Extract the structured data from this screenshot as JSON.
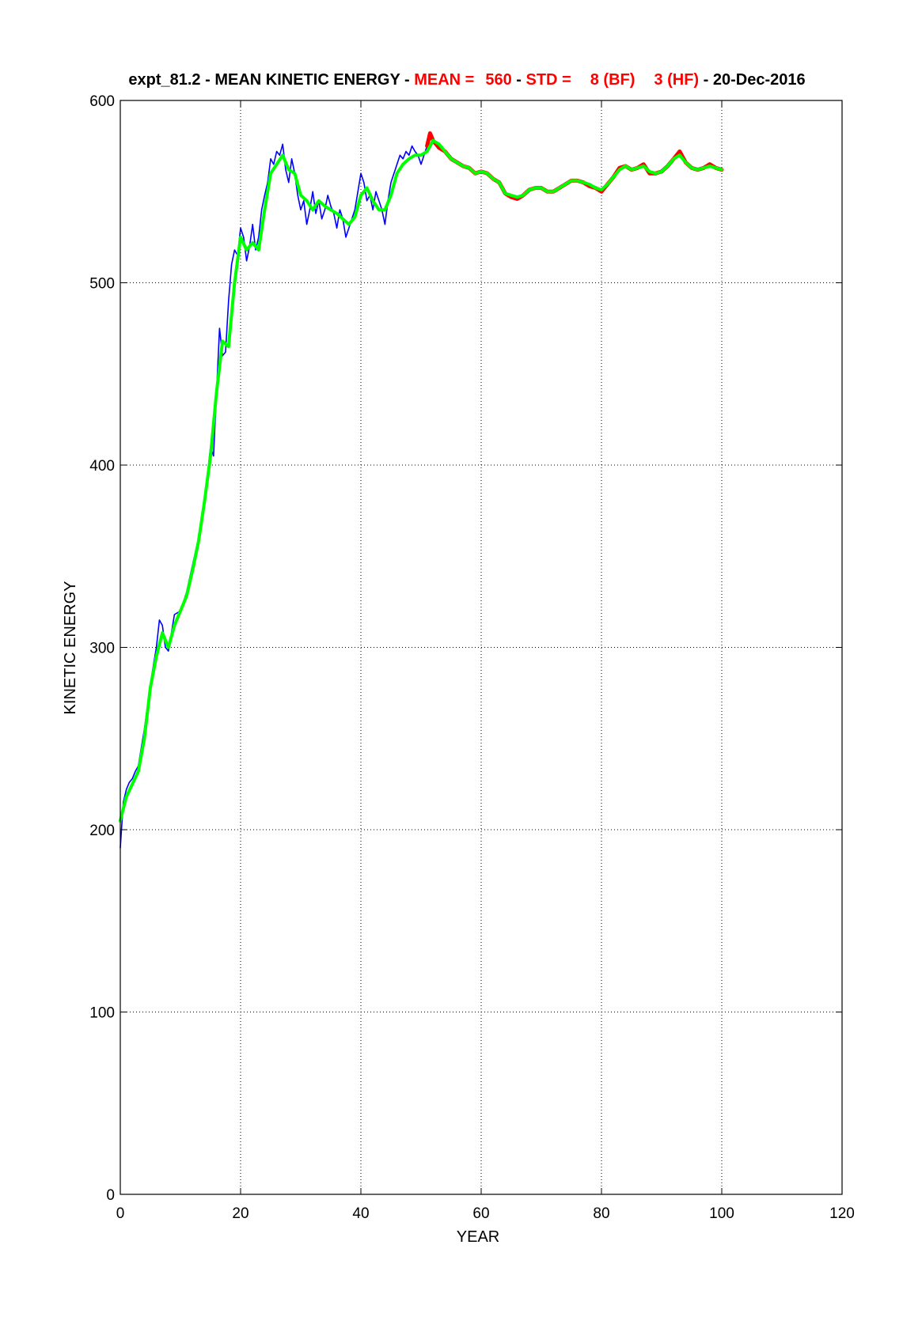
{
  "chart_data": {
    "type": "line",
    "title": {
      "prefix": "expt_81.2 - MEAN KINETIC ENERGY - ",
      "mean_label": "MEAN =",
      "mean_value": "560",
      "std_sep": " - ",
      "std_label": "STD =",
      "std_bf": "8 (BF)",
      "std_hf": "3 (HF)",
      "suffix": " - 20-Dec-2016"
    },
    "xlabel": "YEAR",
    "ylabel": "KINETIC ENERGY",
    "xlim": [
      0,
      120
    ],
    "ylim": [
      0,
      600
    ],
    "x_ticks": [
      0,
      20,
      40,
      60,
      80,
      100,
      120
    ],
    "y_ticks": [
      0,
      100,
      200,
      300,
      400,
      500,
      600
    ],
    "grid": true,
    "colors": {
      "early": "#0000ff",
      "late": "#ff0000",
      "smooth": "#00ff00",
      "grid": "#000000"
    },
    "series": [
      {
        "color": "blue",
        "x": [
          0,
          0.5,
          1,
          1.5,
          2,
          2.5,
          3,
          4,
          5,
          6,
          6.5,
          7,
          7.5,
          8,
          9,
          10,
          11,
          12,
          13,
          14,
          15,
          15.5,
          16,
          16.5,
          17,
          17.5,
          18,
          18.5,
          19,
          19.5,
          20,
          20.5,
          21,
          21.5,
          22,
          22.5,
          23,
          23.5,
          24,
          24.5,
          25,
          25.5,
          26,
          26.5,
          27,
          27.5,
          28,
          28.5,
          29,
          29.5,
          30,
          30.5,
          31,
          31.5,
          32,
          32.5,
          33,
          33.5,
          34,
          34.5,
          35,
          35.5,
          36,
          36.5,
          37,
          37.5,
          38,
          38.5,
          39,
          39.5,
          40,
          40.5,
          41,
          41.5,
          42,
          42.5,
          43,
          43.5,
          44,
          44.5,
          45,
          45.5,
          46,
          46.5,
          47,
          47.5,
          48,
          48.5,
          49,
          49.5,
          50,
          50.5,
          51
        ],
        "y": [
          190,
          215,
          222,
          226,
          228,
          232,
          235,
          255,
          280,
          300,
          315,
          312,
          300,
          298,
          318,
          320,
          330,
          345,
          360,
          380,
          410,
          405,
          440,
          475,
          460,
          462,
          490,
          510,
          518,
          515,
          530,
          525,
          512,
          520,
          532,
          518,
          525,
          540,
          548,
          555,
          568,
          565,
          572,
          570,
          576,
          562,
          555,
          568,
          560,
          548,
          540,
          545,
          532,
          540,
          550,
          538,
          545,
          535,
          540,
          548,
          542,
          538,
          530,
          540,
          535,
          525,
          530,
          535,
          540,
          550,
          560,
          555,
          545,
          548,
          540,
          550,
          545,
          540,
          532,
          545,
          555,
          560,
          565,
          570,
          568,
          572,
          570,
          575,
          572,
          570,
          565,
          570,
          575
        ]
      },
      {
        "color": "red",
        "x": [
          51,
          51.5,
          52,
          52.5,
          53,
          54,
          55,
          56,
          57,
          58,
          59,
          60,
          61,
          62,
          63,
          64,
          65,
          66,
          67,
          68,
          69,
          70,
          71,
          72,
          73,
          74,
          75,
          76,
          77,
          78,
          79,
          80,
          81,
          82,
          83,
          84,
          85,
          86,
          87,
          88,
          89,
          90,
          91,
          92,
          93,
          94,
          95,
          96,
          97,
          98,
          99,
          100
        ],
        "y": [
          575,
          582,
          578,
          576,
          574,
          572,
          568,
          566,
          564,
          563,
          560,
          561,
          560,
          557,
          555,
          549,
          547,
          546,
          548,
          551,
          552,
          552,
          550,
          550,
          552,
          554,
          556,
          556,
          555,
          553,
          552,
          550,
          554,
          558,
          563,
          564,
          562,
          563,
          565,
          560,
          560,
          561,
          564,
          568,
          572,
          566,
          563,
          562,
          563,
          565,
          563,
          562
        ]
      },
      {
        "color": "green",
        "x": [
          0,
          1,
          2,
          3,
          4,
          5,
          6,
          7,
          8,
          9,
          10,
          11,
          12,
          13,
          14,
          15,
          16,
          17,
          18,
          19,
          20,
          21,
          22,
          23,
          24,
          25,
          26,
          27,
          28,
          29,
          30,
          31,
          32,
          33,
          34,
          35,
          36,
          37,
          38,
          39,
          40,
          41,
          42,
          43,
          44,
          45,
          46,
          47,
          48,
          49,
          50,
          51,
          52,
          53,
          54,
          55,
          56,
          57,
          58,
          59,
          60,
          61,
          62,
          63,
          64,
          65,
          66,
          67,
          68,
          69,
          70,
          71,
          72,
          73,
          74,
          75,
          76,
          77,
          78,
          79,
          80,
          81,
          82,
          83,
          84,
          85,
          86,
          87,
          88,
          89,
          90,
          91,
          92,
          93,
          94,
          95,
          96,
          97,
          98,
          99,
          100
        ],
        "y": [
          205,
          218,
          225,
          232,
          250,
          278,
          295,
          308,
          300,
          312,
          320,
          328,
          342,
          358,
          380,
          405,
          440,
          468,
          465,
          500,
          525,
          518,
          522,
          518,
          540,
          560,
          565,
          570,
          562,
          560,
          548,
          545,
          540,
          545,
          542,
          540,
          538,
          535,
          532,
          536,
          548,
          552,
          545,
          540,
          540,
          548,
          560,
          565,
          568,
          570,
          570,
          572,
          578,
          576,
          572,
          568,
          566,
          564,
          563,
          560,
          561,
          560,
          557,
          555,
          549,
          548,
          547,
          548,
          551,
          552,
          552,
          550,
          550,
          552,
          554,
          556,
          556,
          555,
          554,
          552,
          551,
          554,
          558,
          562,
          564,
          562,
          563,
          564,
          561,
          560,
          561,
          564,
          568,
          570,
          566,
          563,
          562,
          563,
          564,
          563,
          562
        ]
      }
    ]
  }
}
